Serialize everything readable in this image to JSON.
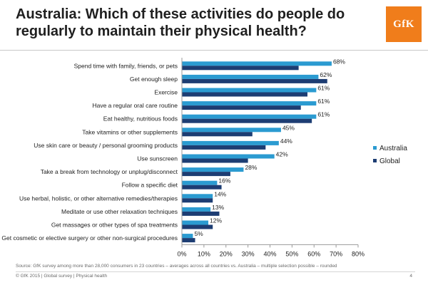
{
  "header": {
    "title_bold": "Australia",
    "title_rest": ": Which of these activities do people do regularly to maintain their physical health?",
    "logo_text": "GfK"
  },
  "colors": {
    "australia": "#2b9bd1",
    "global": "#1d3d73",
    "logo": "#f07d1b"
  },
  "chart_data": {
    "type": "bar",
    "orientation": "horizontal",
    "categories": [
      "Spend time with family, friends, or pets",
      "Get enough sleep",
      "Exercise",
      "Have a regular oral care routine",
      "Eat healthy, nutritious foods",
      "Take vitamins or other supplements",
      "Use skin care or beauty / personal grooming products",
      "Use sunscreen",
      "Take a break from technology or unplug/disconnect",
      "Follow a specific diet",
      "Use herbal, holistic, or other alternative remedies/therapies",
      "Meditate or use other relaxation techniques",
      "Get massages or other types of spa treatments",
      "Get cosmetic or elective surgery or other non-surgical procedures"
    ],
    "series": [
      {
        "name": "Australia",
        "values": [
          68,
          62,
          61,
          61,
          61,
          45,
          44,
          42,
          28,
          16,
          14,
          13,
          12,
          5
        ],
        "labels": [
          "68%",
          "62%",
          "61%",
          "61%",
          "61%",
          "45%",
          "44%",
          "42%",
          "28%",
          "16%",
          "14%",
          "13%",
          "12%",
          "5%"
        ]
      },
      {
        "name": "Global",
        "values": [
          53,
          66,
          57,
          54,
          59,
          32,
          38,
          30,
          22,
          18,
          14,
          17,
          14,
          6
        ]
      }
    ],
    "xlim": [
      0,
      80
    ],
    "xticks": [
      "0%",
      "10%",
      "20%",
      "30%",
      "40%",
      "50%",
      "60%",
      "70%",
      "80%"
    ],
    "legend_position": "right",
    "grid": false
  },
  "footer": {
    "source": "Source: GfK survey among more than 28,000 consumers in 23 countries – averages across all countries vs. Australia – multiple selection possible – rounded",
    "copyright": "© GfK 2015 | Global survey | Physical health",
    "page": "4"
  }
}
